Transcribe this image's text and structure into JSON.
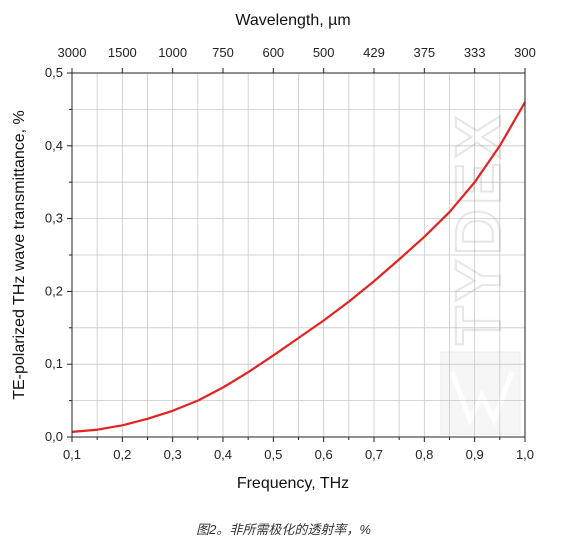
{
  "chart_data": {
    "type": "line",
    "xlabel": "Frequency, THz",
    "ylabel": "TE-polarized THz wave transmittance, %",
    "top_axis_label": "Wavelength, µm",
    "xlim": [
      0.1,
      1.0
    ],
    "ylim": [
      0.0,
      0.5
    ],
    "x_ticks": [
      "0,1",
      "0,2",
      "0,3",
      "0,4",
      "0,5",
      "0,6",
      "0,7",
      "0,8",
      "0,9",
      "1,0"
    ],
    "y_ticks": [
      "0,0",
      "0,1",
      "0,2",
      "0,3",
      "0,4",
      "0,5"
    ],
    "top_ticks": [
      "3000",
      "1500",
      "1000",
      "750",
      "600",
      "500",
      "429",
      "375",
      "333",
      "300"
    ],
    "grid": true,
    "series": [
      {
        "color": "#e32322",
        "x": [
          0.1,
          0.15,
          0.2,
          0.25,
          0.3,
          0.35,
          0.4,
          0.45,
          0.5,
          0.55,
          0.6,
          0.65,
          0.7,
          0.75,
          0.8,
          0.85,
          0.9,
          0.95,
          1.0
        ],
        "y": [
          0.007,
          0.01,
          0.016,
          0.025,
          0.036,
          0.05,
          0.068,
          0.089,
          0.112,
          0.136,
          0.16,
          0.186,
          0.214,
          0.244,
          0.275,
          0.309,
          0.35,
          0.4,
          0.46
        ]
      }
    ],
    "watermark": "TYDEX"
  },
  "caption": "图2。非所需极化的透射率，%"
}
